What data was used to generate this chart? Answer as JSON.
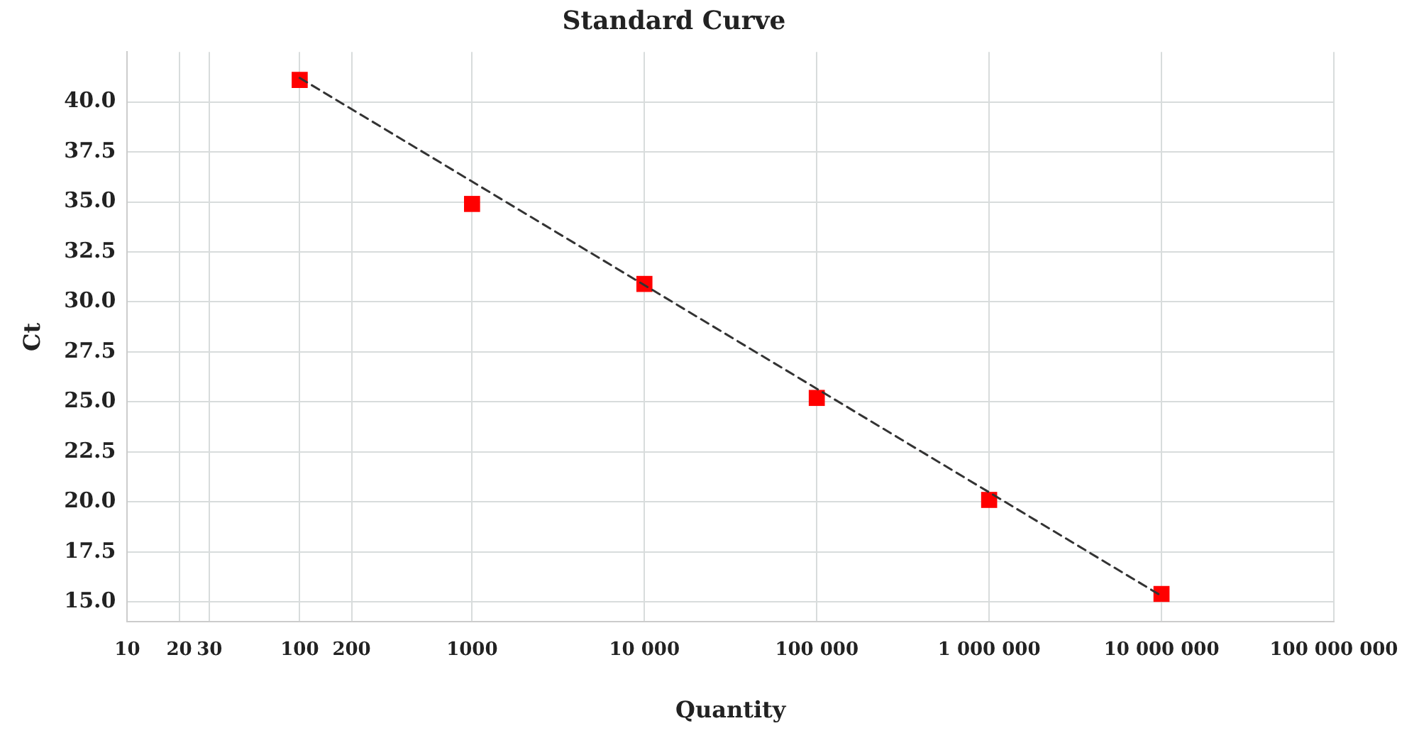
{
  "chart_data": {
    "type": "scatter",
    "title": "Standard Curve",
    "xlabel": "Quantity",
    "ylabel": "Ct",
    "log": "x",
    "grid": true,
    "legend": false,
    "xlim": [
      10,
      100000000
    ],
    "xticks": [
      10,
      20,
      30,
      100,
      200,
      1000,
      {
        "value": 10000,
        "label": "10 000"
      },
      {
        "value": 100000,
        "label": "100 000"
      },
      {
        "value": 1000000,
        "label": "1 000 000"
      },
      {
        "value": 10000000,
        "label": "10 000 000"
      },
      {
        "value": 100000000,
        "label": "100 000 000"
      }
    ],
    "ylim": [
      14,
      42.5
    ],
    "yticks": [
      {
        "value": 15,
        "label": "15.0"
      },
      {
        "value": 17.5,
        "label": "17.5"
      },
      {
        "value": 20,
        "label": "20.0"
      },
      {
        "value": 22.5,
        "label": "22.5"
      },
      {
        "value": 25,
        "label": "25.0"
      },
      {
        "value": 27.5,
        "label": "27.5"
      },
      {
        "value": 30,
        "label": "30.0"
      },
      {
        "value": 32.5,
        "label": "32.5"
      },
      {
        "value": 35,
        "label": "35.0"
      },
      {
        "value": 37.5,
        "label": "37.5"
      },
      {
        "value": 40,
        "label": "40.0"
      }
    ],
    "series": [
      {
        "type": "line",
        "color": "#333333",
        "line_style": "dashed",
        "marker": "none",
        "x": [
          100,
          10000000
        ],
        "values": [
          41.2,
          15.3
        ]
      },
      {
        "color": "#ff0000",
        "marker": "square",
        "x": [
          100,
          1000,
          10000,
          100000,
          1000000,
          10000000
        ],
        "values": [
          41.1,
          34.9,
          30.9,
          25.2,
          20.1,
          15.4
        ]
      }
    ]
  }
}
